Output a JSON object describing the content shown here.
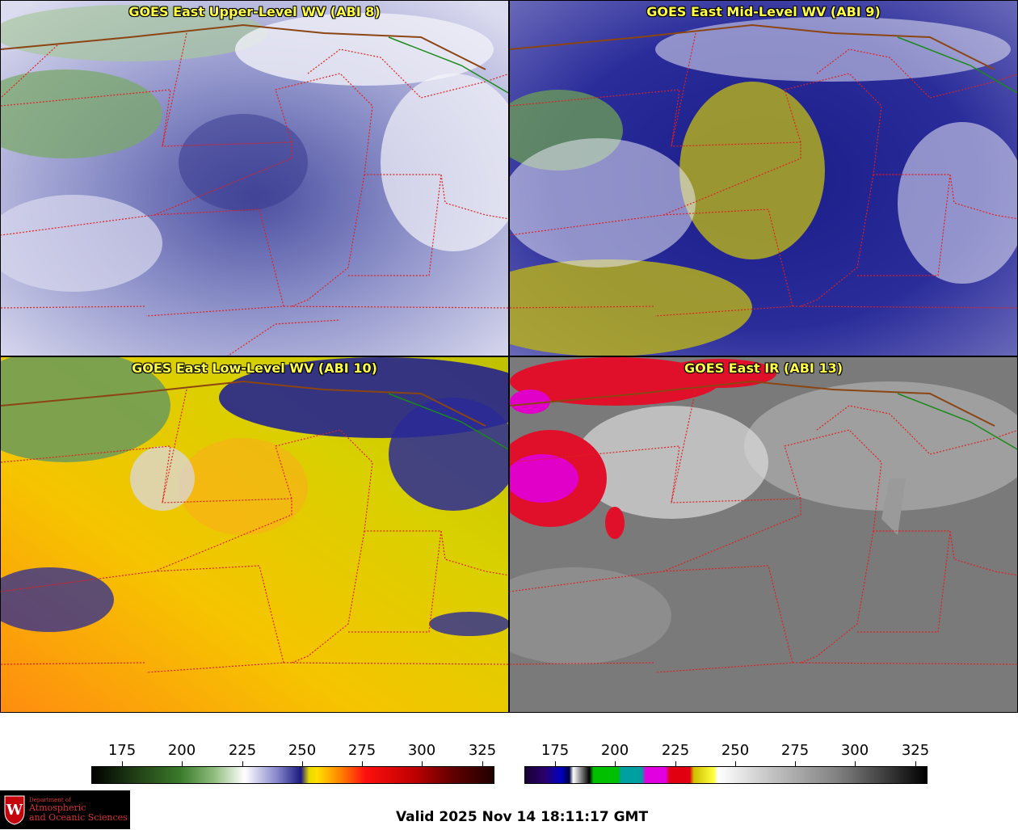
{
  "panels": [
    {
      "id": "upper",
      "title": "GOES East Upper-Level WV (ABI 8)"
    },
    {
      "id": "mid",
      "title": "GOES East Mid-Level WV (ABI 9)"
    },
    {
      "id": "low",
      "title": "GOES East Low-Level WV (ABI 10)"
    },
    {
      "id": "ir",
      "title": "GOES East IR (ABI 13)"
    }
  ],
  "colorbars": {
    "wv": {
      "ticks": [
        "175",
        "200",
        "225",
        "250",
        "275",
        "300",
        "325"
      ]
    },
    "ir": {
      "ticks": [
        "175",
        "200",
        "225",
        "250",
        "275",
        "300",
        "325"
      ]
    }
  },
  "footer": {
    "valid_text": "Valid 2025 Nov 14 18:11:17 GMT"
  },
  "logo": {
    "dept_line": "Department of",
    "name_line1": "Atmospheric",
    "name_line2": "and Oceanic Sciences",
    "crest_letter": "W"
  },
  "colors": {
    "border_lines": "#e02020",
    "coast_line": "#8b4513",
    "canada_border": "#1a8a1a",
    "title_text": "#ffff44"
  }
}
